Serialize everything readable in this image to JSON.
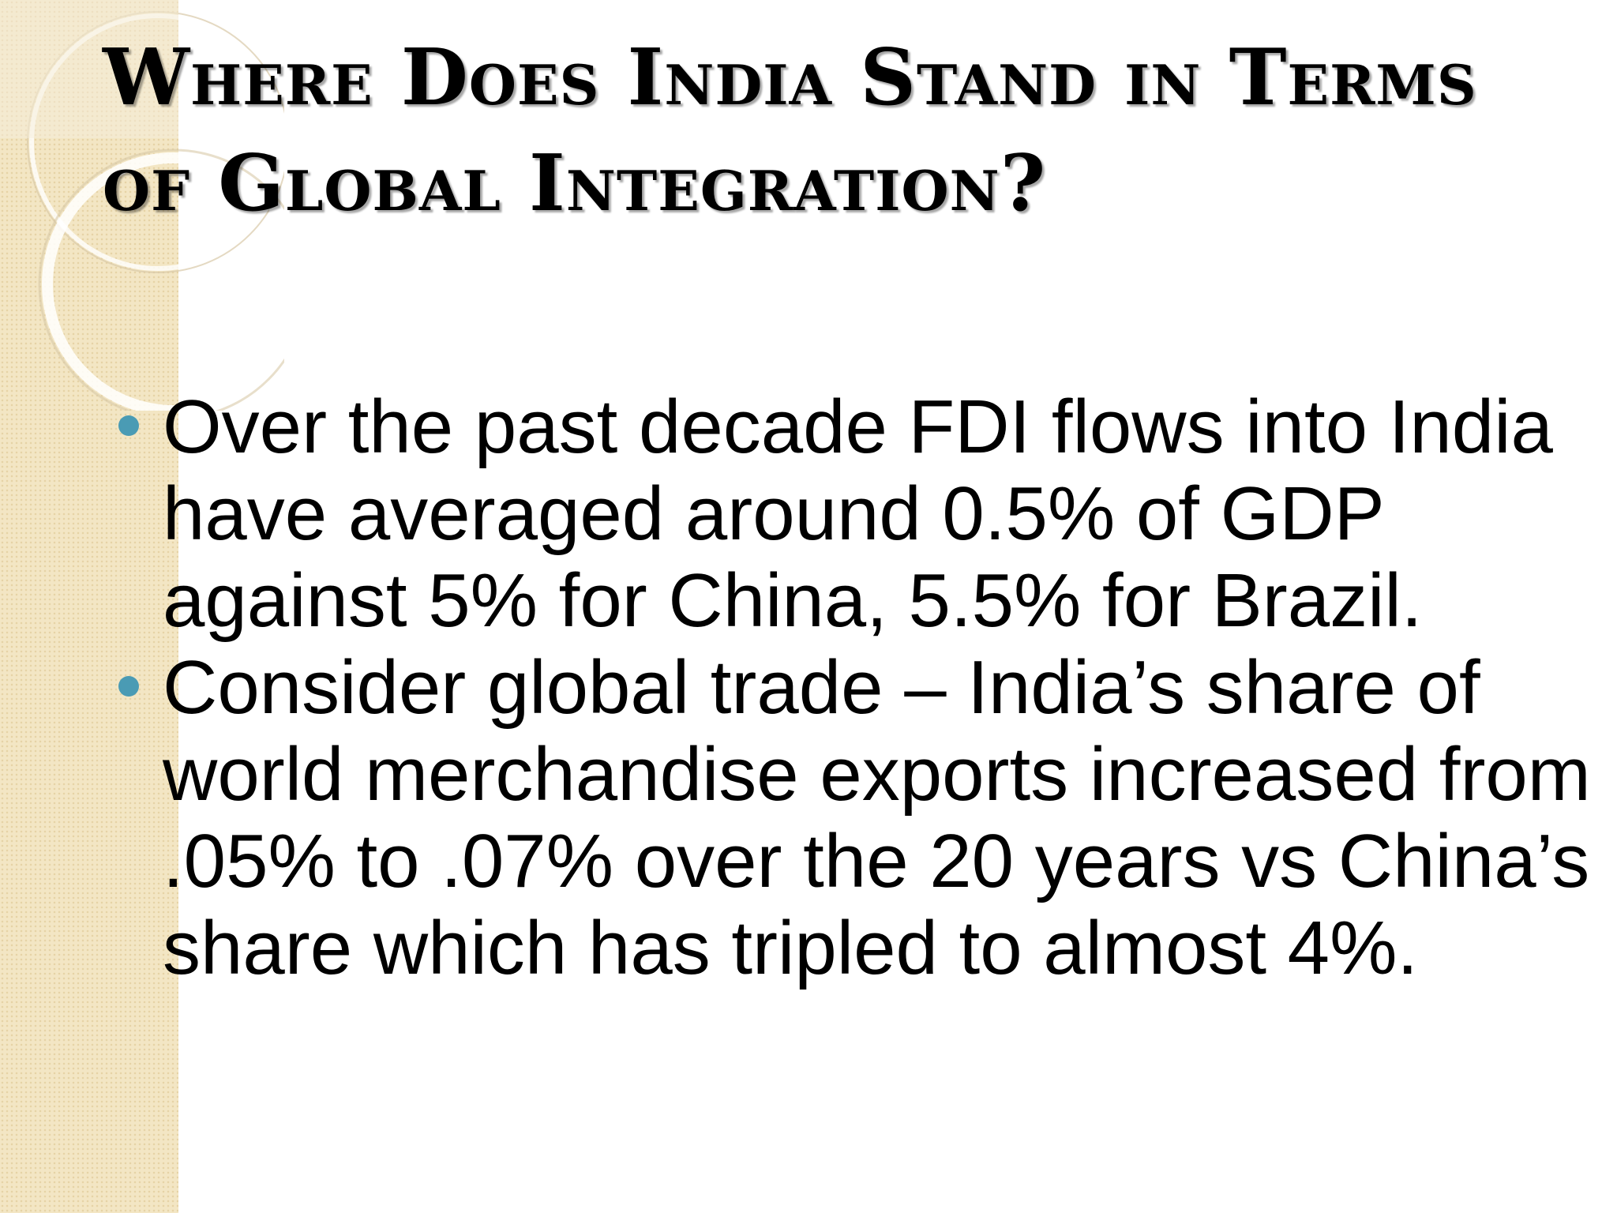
{
  "title": "Where Does India Stand in Terms of Global Integration?",
  "bullets": [
    "Over the past decade FDI flows into India have averaged around 0.5% of GDP against 5% for China, 5.5% for Brazil.",
    "Consider global trade – India’s share of world merchandise exports increased from .05% to .07% over the 20 years vs China’s share which has tripled to almost 4%."
  ]
}
